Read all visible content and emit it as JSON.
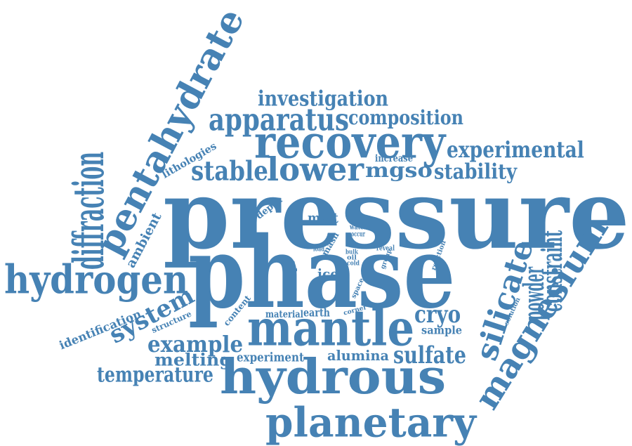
{
  "color": "#4682b4",
  "words": [
    {
      "text": "pressure"
    },
    {
      "text": "phase"
    },
    {
      "text": "hydrous"
    },
    {
      "text": "mantle"
    },
    {
      "text": "planetary"
    },
    {
      "text": "recovery"
    },
    {
      "text": "pentahydrate"
    },
    {
      "text": "magnesium"
    },
    {
      "text": "hydrogen"
    },
    {
      "text": "silicate"
    },
    {
      "text": "lower"
    },
    {
      "text": "apparatus"
    },
    {
      "text": "stable"
    },
    {
      "text": "investigation"
    },
    {
      "text": "composition"
    },
    {
      "text": "experimental"
    },
    {
      "text": "cryo"
    },
    {
      "text": "mgso"
    },
    {
      "text": "stability"
    },
    {
      "text": "diffraction"
    },
    {
      "text": "system"
    },
    {
      "text": "sulfate"
    },
    {
      "text": "example"
    },
    {
      "text": "temperature"
    },
    {
      "text": "melting"
    },
    {
      "text": "experiment"
    },
    {
      "text": "alumina"
    },
    {
      "text": "powder"
    },
    {
      "text": "constraint"
    },
    {
      "text": "identification"
    },
    {
      "text": "ambient"
    },
    {
      "text": "lithologies"
    },
    {
      "text": "content"
    },
    {
      "text": "structure"
    },
    {
      "text": "melt"
    },
    {
      "text": "ice"
    },
    {
      "text": "material"
    },
    {
      "text": "earth"
    },
    {
      "text": "sample"
    },
    {
      "text": "depth"
    },
    {
      "text": "increase"
    },
    {
      "text": "slope"
    },
    {
      "text": "mash"
    },
    {
      "text": "water"
    },
    {
      "text": "occur"
    },
    {
      "text": "load"
    },
    {
      "text": "bulk"
    },
    {
      "text": "oil"
    },
    {
      "text": "cold"
    },
    {
      "text": "reveal"
    },
    {
      "text": "group"
    },
    {
      "text": "reaction"
    },
    {
      "text": "space"
    },
    {
      "text": "corner"
    },
    {
      "text": "solution"
    }
  ]
}
